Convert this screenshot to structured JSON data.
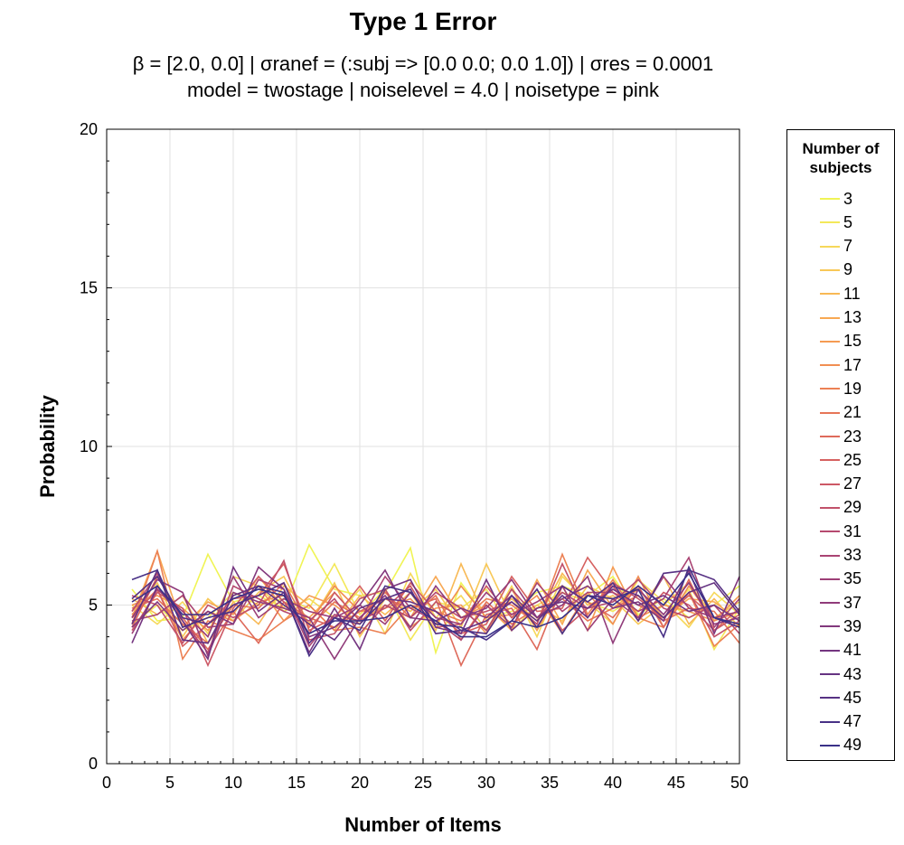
{
  "chart_data": {
    "type": "line",
    "title": "Type 1 Error",
    "subtitle_line1": "β = [2.0, 0.0]   |   σranef = (:subj => [0.0 0.0; 0.0 1.0])   |   σres = 0.0001",
    "subtitle_line2": "model = twostage   |   noiselevel = 4.0   |   noisetype = pink",
    "xlabel": "Number of Items",
    "ylabel": "Probability",
    "xlim": [
      0,
      50
    ],
    "ylim": [
      0,
      20
    ],
    "xticks": [
      0,
      5,
      10,
      15,
      20,
      25,
      30,
      35,
      40,
      45,
      50
    ],
    "yticks": [
      0,
      5,
      10,
      15,
      20
    ],
    "grid": true,
    "legend_title": "Number of\nsubjects",
    "legend_placement": "right",
    "x": [
      2,
      4,
      6,
      8,
      10,
      12,
      14,
      16,
      18,
      20,
      22,
      24,
      26,
      28,
      30,
      32,
      34,
      36,
      38,
      40,
      42,
      44,
      46,
      48,
      50
    ],
    "series": [
      {
        "name": "3",
        "color": "#f0f455",
        "values": [
          5.5,
          4.5,
          4.6,
          6.6,
          5.1,
          5.3,
          4.9,
          6.9,
          5.5,
          5.3,
          5.4,
          6.8,
          3.5,
          5.7,
          4.6,
          4.8,
          5.4,
          5.6,
          5.3,
          5.9,
          4.7,
          5.2,
          4.6,
          5.0,
          5.6
        ]
      },
      {
        "name": "5",
        "color": "#f3e85a",
        "values": [
          4.4,
          5.0,
          4.2,
          4.6,
          5.4,
          5.0,
          5.2,
          4.9,
          6.3,
          4.7,
          5.5,
          3.9,
          5.1,
          4.9,
          5.5,
          4.2,
          5.0,
          5.4,
          5.1,
          4.8,
          5.3,
          4.6,
          5.5,
          3.6,
          4.9
        ]
      },
      {
        "name": "7",
        "color": "#f6d85a",
        "values": [
          5.0,
          4.4,
          5.1,
          4.1,
          5.9,
          5.6,
          4.8,
          5.2,
          4.6,
          5.5,
          4.1,
          6.0,
          4.6,
          5.3,
          4.2,
          5.6,
          4.0,
          5.9,
          5.1,
          4.4,
          5.8,
          5.1,
          4.3,
          5.4,
          4.7
        ]
      },
      {
        "name": "9",
        "color": "#f8c857",
        "values": [
          4.8,
          5.7,
          4.0,
          5.2,
          4.5,
          5.4,
          5.9,
          4.4,
          5.7,
          4.0,
          5.2,
          4.8,
          5.5,
          4.3,
          6.3,
          4.6,
          5.0,
          4.5,
          5.6,
          5.2,
          4.4,
          5.0,
          5.7,
          4.6,
          5.1
        ]
      },
      {
        "name": "11",
        "color": "#f8b955",
        "values": [
          5.2,
          4.7,
          5.3,
          3.8,
          5.1,
          4.4,
          5.6,
          5.0,
          4.2,
          5.3,
          4.7,
          5.4,
          4.2,
          6.3,
          4.5,
          5.2,
          4.5,
          6.0,
          5.0,
          5.3,
          4.8,
          5.9,
          4.4,
          5.2,
          4.3
        ]
      },
      {
        "name": "13",
        "color": "#f8a853",
        "values": [
          4.6,
          6.7,
          4.3,
          5.1,
          4.7,
          5.9,
          4.9,
          4.6,
          5.4,
          4.5,
          5.0,
          4.6,
          5.9,
          4.6,
          5.0,
          4.2,
          5.8,
          4.4,
          6.1,
          4.9,
          5.5,
          4.6,
          5.2,
          5.1,
          4.5
        ]
      },
      {
        "name": "15",
        "color": "#f59b52",
        "values": [
          5.0,
          5.3,
          4.9,
          4.2,
          5.3,
          5.6,
          4.5,
          5.3,
          5.0,
          4.4,
          5.5,
          4.3,
          4.9,
          5.0,
          4.1,
          5.5,
          4.2,
          5.6,
          4.2,
          6.2,
          4.6,
          5.0,
          4.8,
          4.5,
          5.3
        ]
      },
      {
        "name": "17",
        "color": "#f18e52",
        "values": [
          4.7,
          5.5,
          3.9,
          4.8,
          4.5,
          5.1,
          5.3,
          4.4,
          5.6,
          4.8,
          4.9,
          5.2,
          4.4,
          5.6,
          4.6,
          4.7,
          5.3,
          4.1,
          5.4,
          4.4,
          5.9,
          4.3,
          5.6,
          4.5,
          4.8
        ]
      },
      {
        "name": "19",
        "color": "#ec8154",
        "values": [
          4.4,
          6.7,
          3.3,
          4.5,
          4.2,
          3.9,
          4.5,
          5.0,
          4.2,
          4.3,
          4.1,
          5.0,
          4.8,
          4.5,
          5.2,
          5.0,
          4.4,
          6.6,
          4.7,
          5.8,
          4.6,
          4.3,
          5.4,
          3.7,
          4.4
        ]
      },
      {
        "name": "21",
        "color": "#e67557",
        "values": [
          4.9,
          5.2,
          4.4,
          3.8,
          5.0,
          4.9,
          5.7,
          4.3,
          5.1,
          4.6,
          5.4,
          4.6,
          5.3,
          3.9,
          5.1,
          4.4,
          4.9,
          5.2,
          4.5,
          4.9,
          5.3,
          4.5,
          4.9,
          4.8,
          3.8
        ]
      },
      {
        "name": "23",
        "color": "#de6a5b",
        "values": [
          4.3,
          5.9,
          4.6,
          3.6,
          4.8,
          3.8,
          5.1,
          4.6,
          4.3,
          4.8,
          5.2,
          4.9,
          5.2,
          3.1,
          4.7,
          4.9,
          3.6,
          5.6,
          5.1,
          4.6,
          5.6,
          4.3,
          5.8,
          4.2,
          4.9
        ]
      },
      {
        "name": "25",
        "color": "#d66160",
        "values": [
          4.6,
          5.5,
          3.7,
          4.4,
          5.2,
          5.3,
          6.3,
          4.2,
          4.6,
          5.6,
          4.5,
          5.7,
          4.8,
          4.1,
          4.4,
          5.9,
          4.8,
          4.9,
          6.5,
          5.4,
          5.0,
          4.6,
          5.3,
          4.6,
          4.4
        ]
      },
      {
        "name": "27",
        "color": "#cc5865",
        "values": [
          4.2,
          5.4,
          4.9,
          3.1,
          4.9,
          5.9,
          5.1,
          4.1,
          5.4,
          4.5,
          4.9,
          5.6,
          4.3,
          4.4,
          5.6,
          4.6,
          5.5,
          4.2,
          4.9,
          5.6,
          4.5,
          5.4,
          5.0,
          4.2,
          4.7
        ]
      },
      {
        "name": "29",
        "color": "#c1516a",
        "values": [
          5.3,
          5.0,
          3.8,
          5.0,
          4.6,
          5.0,
          6.4,
          3.9,
          4.1,
          5.2,
          5.5,
          4.2,
          5.1,
          4.6,
          4.8,
          5.1,
          4.4,
          6.3,
          4.6,
          5.7,
          5.2,
          4.6,
          5.4,
          4.0,
          4.5
        ]
      },
      {
        "name": "31",
        "color": "#b64a6f",
        "values": [
          4.8,
          6.0,
          4.5,
          3.5,
          5.6,
          5.2,
          4.8,
          4.5,
          5.2,
          4.1,
          5.0,
          4.6,
          5.4,
          4.9,
          4.2,
          5.5,
          4.6,
          5.4,
          4.9,
          5.1,
          5.8,
          4.9,
          4.6,
          5.0,
          4.1
        ]
      },
      {
        "name": "33",
        "color": "#aa4473",
        "values": [
          4.5,
          4.7,
          5.3,
          4.3,
          4.4,
          5.8,
          5.5,
          3.7,
          4.7,
          4.5,
          5.9,
          4.9,
          4.5,
          3.9,
          5.0,
          4.3,
          5.7,
          4.8,
          5.4,
          5.4,
          4.8,
          5.2,
          6.5,
          4.3,
          5.2
        ]
      },
      {
        "name": "35",
        "color": "#9d3f77",
        "values": [
          4.1,
          5.5,
          4.8,
          4.0,
          5.9,
          4.6,
          5.2,
          4.8,
          4.6,
          5.0,
          4.4,
          5.4,
          4.6,
          4.4,
          5.4,
          4.7,
          5.1,
          5.6,
          4.2,
          5.2,
          4.6,
          5.9,
          4.9,
          4.6,
          4.8
        ]
      },
      {
        "name": "37",
        "color": "#903b7a",
        "values": [
          4.6,
          5.8,
          5.4,
          3.4,
          5.4,
          5.1,
          4.9,
          4.6,
          3.3,
          4.6,
          5.3,
          4.3,
          5.6,
          4.6,
          4.9,
          5.8,
          4.6,
          5.0,
          5.9,
          3.8,
          5.5,
          4.7,
          5.7,
          4.4,
          4.6
        ]
      },
      {
        "name": "39",
        "color": "#82387d",
        "values": [
          4.3,
          5.1,
          4.2,
          4.8,
          4.4,
          6.2,
          5.5,
          4.0,
          4.3,
          5.0,
          6.1,
          4.6,
          4.5,
          4.9,
          4.6,
          5.3,
          4.6,
          5.2,
          5.6,
          4.9,
          5.1,
          4.5,
          6.1,
          4.1,
          5.9
        ]
      },
      {
        "name": "41",
        "color": "#743580",
        "values": [
          3.8,
          5.6,
          4.5,
          3.3,
          6.2,
          4.8,
          5.4,
          3.5,
          4.9,
          3.6,
          5.5,
          5.8,
          4.3,
          4.1,
          5.8,
          4.2,
          4.9,
          5.1,
          4.9,
          5.5,
          5.0,
          5.3,
          4.8,
          5.0,
          4.5
        ]
      },
      {
        "name": "43",
        "color": "#653382",
        "values": [
          4.4,
          6.1,
          3.9,
          3.8,
          5.3,
          5.6,
          5.0,
          4.4,
          3.9,
          4.9,
          5.2,
          5.1,
          4.8,
          4.2,
          4.5,
          5.1,
          4.5,
          5.3,
          4.6,
          5.6,
          5.3,
          4.6,
          5.4,
          5.7,
          4.7
        ]
      },
      {
        "name": "45",
        "color": "#573284",
        "values": [
          5.2,
          5.9,
          4.6,
          4.4,
          5.0,
          5.3,
          5.7,
          3.8,
          4.6,
          4.4,
          5.2,
          5.5,
          4.1,
          4.2,
          4.1,
          5.3,
          4.3,
          5.6,
          5.1,
          5.7,
          4.5,
          6.0,
          6.1,
          5.8,
          4.8
        ]
      },
      {
        "name": "47",
        "color": "#483186",
        "values": [
          5.8,
          6.1,
          4.3,
          4.6,
          4.8,
          5.6,
          5.4,
          3.4,
          4.6,
          4.2,
          5.6,
          5.4,
          4.4,
          4.3,
          3.9,
          4.5,
          5.5,
          4.1,
          5.3,
          5.2,
          5.5,
          4.0,
          6.2,
          4.6,
          4.3
        ]
      },
      {
        "name": "49",
        "color": "#3a3188",
        "values": [
          5.1,
          5.6,
          4.7,
          4.7,
          5.2,
          5.5,
          5.3,
          4.1,
          4.5,
          4.5,
          4.6,
          5.0,
          4.5,
          4.0,
          4.0,
          4.5,
          4.3,
          4.6,
          5.3,
          5.0,
          5.6,
          5.0,
          6.0,
          4.6,
          4.4
        ]
      }
    ]
  }
}
